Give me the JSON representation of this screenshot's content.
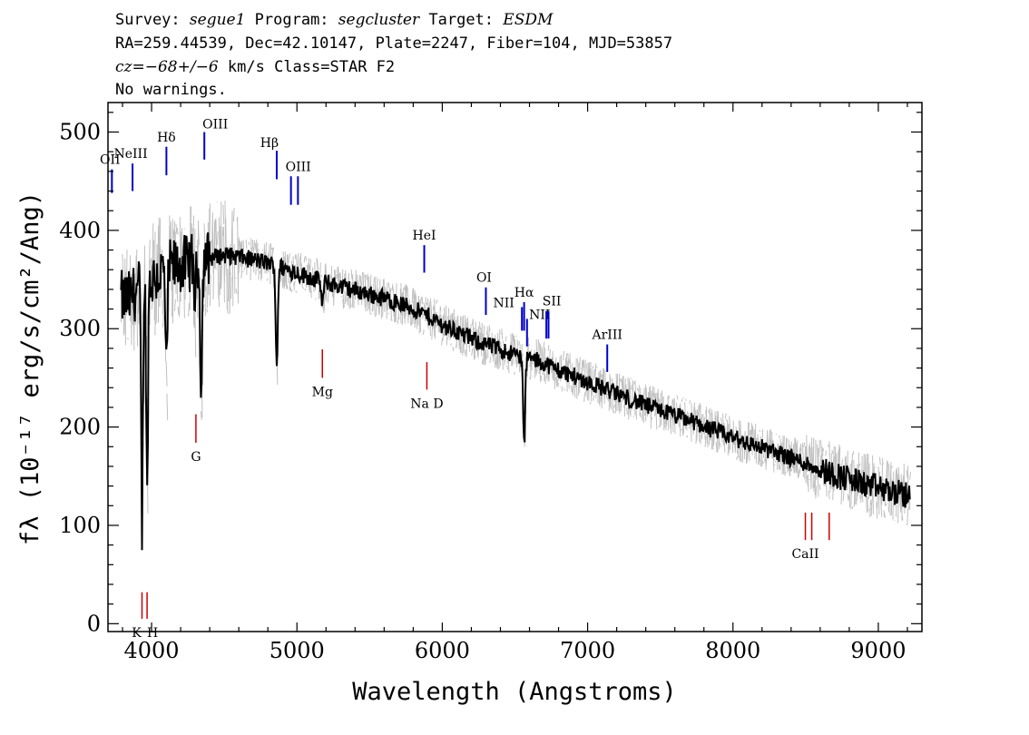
{
  "header": {
    "survey_label": "Survey:",
    "survey": "segue1",
    "program_label": "Program:",
    "program": "segcluster",
    "target_label": "Target:",
    "target": "ESDM",
    "line2": "RA=259.44539, Dec=42.10147, Plate=2247, Fiber=104, MJD=53857",
    "cz_label": "cz=",
    "cz_value": "−68+/−6",
    "cz_rest": "km/s Class=STAR F2",
    "warnings": "No warnings."
  },
  "chart_data": {
    "type": "line",
    "xlabel": "Wavelength (Angstroms)",
    "ylabel": "fλ (10⁻¹⁷ erg/s/cm²/Ang)",
    "xlim": [
      3700,
      9300
    ],
    "ylim": [
      -8,
      530
    ],
    "x_ticks": [
      4000,
      5000,
      6000,
      7000,
      8000,
      9000
    ],
    "y_ticks": [
      0,
      100,
      200,
      300,
      400,
      500
    ],
    "grid": false,
    "series": [
      {
        "color": "#000000",
        "continuum": [
          [
            3790,
            330
          ],
          [
            3850,
            330
          ],
          [
            3900,
            340
          ],
          [
            4000,
            350
          ],
          [
            4100,
            360
          ],
          [
            4200,
            365
          ],
          [
            4300,
            368
          ],
          [
            4400,
            372
          ],
          [
            4500,
            375
          ],
          [
            4600,
            373
          ],
          [
            4700,
            370
          ],
          [
            4800,
            367
          ],
          [
            4900,
            362
          ],
          [
            5000,
            357
          ],
          [
            5100,
            352
          ],
          [
            5200,
            347
          ],
          [
            5300,
            343
          ],
          [
            5400,
            339
          ],
          [
            5500,
            335
          ],
          [
            5600,
            331
          ],
          [
            5700,
            326
          ],
          [
            5800,
            320
          ],
          [
            5900,
            313
          ],
          [
            6000,
            304
          ],
          [
            6100,
            297
          ],
          [
            6200,
            290
          ],
          [
            6300,
            284
          ],
          [
            6400,
            279
          ],
          [
            6500,
            274
          ],
          [
            6600,
            270
          ],
          [
            6700,
            265
          ],
          [
            6800,
            258
          ],
          [
            6900,
            252
          ],
          [
            7000,
            246
          ],
          [
            7100,
            240
          ],
          [
            7200,
            234
          ],
          [
            7300,
            228
          ],
          [
            7400,
            222
          ],
          [
            7500,
            217
          ],
          [
            7600,
            212
          ],
          [
            7700,
            207
          ],
          [
            7800,
            201
          ],
          [
            7900,
            195
          ],
          [
            8000,
            189
          ],
          [
            8100,
            184
          ],
          [
            8200,
            179
          ],
          [
            8300,
            174
          ],
          [
            8400,
            169
          ],
          [
            8500,
            163
          ],
          [
            8600,
            157
          ],
          [
            8700,
            152
          ],
          [
            8800,
            147
          ],
          [
            8900,
            142
          ],
          [
            9000,
            138
          ],
          [
            9100,
            134
          ],
          [
            9200,
            130
          ]
        ],
        "absorption": [
          {
            "center": 3934,
            "depth": 250,
            "width": 8
          },
          {
            "center": 3969,
            "depth": 215,
            "width": 8
          },
          {
            "center": 4102,
            "depth": 110,
            "width": 9
          },
          {
            "center": 4300,
            "depth": 45,
            "width": 8
          },
          {
            "center": 4341,
            "depth": 120,
            "width": 10
          },
          {
            "center": 4861,
            "depth": 100,
            "width": 10
          },
          {
            "center": 5175,
            "depth": 25,
            "width": 10
          },
          {
            "center": 6563,
            "depth": 90,
            "width": 10
          }
        ]
      },
      {
        "color": "#bfbfbf",
        "note": "1-sigma error envelope"
      }
    ],
    "emission_lines": [
      {
        "label": "OII",
        "wavelength": 3727,
        "ymin": 438,
        "ymax": 462
      },
      {
        "label": "NeIII",
        "wavelength": 3869,
        "ymin": 440,
        "ymax": 468
      },
      {
        "label": "Hδ",
        "wavelength": 4102,
        "ymin": 456,
        "ymax": 485
      },
      {
        "label": "OIII",
        "wavelength": 4363,
        "ymin": 472,
        "ymax": 500
      },
      {
        "label": "Hβ",
        "wavelength": 4861,
        "ymin": 452,
        "ymax": 481
      },
      {
        "label": "OIII",
        "wavelength": 4959,
        "ymin": 426,
        "ymax": 455
      },
      {
        "label": "OIII",
        "wavelength": 5007,
        "ymin": 426,
        "ymax": 455
      },
      {
        "label": "HeI",
        "wavelength": 5876,
        "ymin": 357,
        "ymax": 385
      },
      {
        "label": "OI",
        "wavelength": 6300,
        "ymin": 314,
        "ymax": 342
      },
      {
        "label": "NII",
        "wavelength": 6548,
        "ymin": 298,
        "ymax": 322
      },
      {
        "label": "Hα",
        "wavelength": 6563,
        "ymin": 298,
        "ymax": 327
      },
      {
        "label": "NII",
        "wavelength": 6583,
        "ymin": 282,
        "ymax": 310
      },
      {
        "label": "SII",
        "wavelength": 6716,
        "ymin": 290,
        "ymax": 318
      },
      {
        "label": "SII",
        "wavelength": 6731,
        "ymin": 290,
        "ymax": 318
      },
      {
        "label": "ArIII",
        "wavelength": 7135,
        "ymin": 256,
        "ymax": 284
      }
    ],
    "absorption_lines": [
      {
        "label": "K",
        "wavelength": 3934,
        "ymin": 5,
        "ymax": 32
      },
      {
        "label": "H",
        "wavelength": 3969,
        "ymin": 5,
        "ymax": 32
      },
      {
        "label": "G",
        "wavelength": 4305,
        "ymin": 184,
        "ymax": 213
      },
      {
        "label": "Mg",
        "wavelength": 5175,
        "ymin": 250,
        "ymax": 279
      },
      {
        "label": "Na D",
        "wavelength": 5894,
        "ymin": 238,
        "ymax": 266
      },
      {
        "label": "CaII",
        "wavelength": 8498,
        "ymin": 85,
        "ymax": 113
      },
      {
        "label": "CaII",
        "wavelength": 8542,
        "ymin": 85,
        "ymax": 113
      },
      {
        "label": "CaII",
        "wavelength": 8662,
        "ymin": 85,
        "ymax": 113
      }
    ]
  }
}
